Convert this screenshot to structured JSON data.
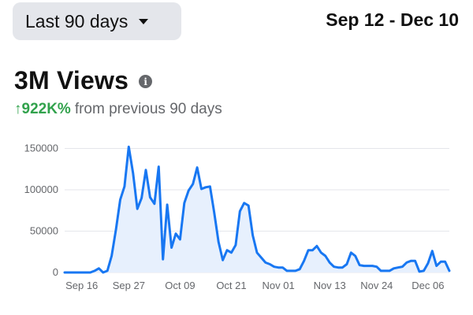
{
  "range_selector": {
    "label": "Last 90 days",
    "icon": "caret-down-icon"
  },
  "date_range": "Sep 12 - Dec 10",
  "metric": {
    "title": "3M Views",
    "info_icon": "info-icon"
  },
  "change": {
    "arrow": "↑",
    "value": "922K%",
    "text": "from previous 90 days",
    "color": "#31a24c"
  },
  "colors": {
    "line": "#1877f2",
    "fill": "#e7f0fd",
    "grid": "#e4e6eb"
  },
  "chart_data": {
    "type": "area",
    "x_start": "Sep 12",
    "x_end": "Dec 10",
    "ylim": [
      0,
      160000
    ],
    "yticks": [
      0,
      50000,
      100000,
      150000
    ],
    "ytick_labels": [
      "0",
      "50000",
      "100000",
      "150000"
    ],
    "xticks": [
      {
        "label": "Sep 16",
        "day": 4
      },
      {
        "label": "Sep 27",
        "day": 15
      },
      {
        "label": "Oct 09",
        "day": 27
      },
      {
        "label": "Oct 21",
        "day": 39
      },
      {
        "label": "Nov 01",
        "day": 50
      },
      {
        "label": "Nov 13",
        "day": 62
      },
      {
        "label": "Nov 24",
        "day": 73
      },
      {
        "label": "Dec 06",
        "day": 85
      }
    ],
    "series": [
      {
        "values": [
          0,
          0,
          0,
          0,
          0,
          0,
          0,
          2000,
          5000,
          0,
          2000,
          20000,
          52000,
          88000,
          104000,
          152000,
          120000,
          77000,
          90000,
          124000,
          91000,
          83000,
          128000,
          16000,
          82000,
          30000,
          47000,
          40000,
          84000,
          99000,
          107000,
          127000,
          101000,
          103000,
          104000,
          72000,
          37000,
          15000,
          27000,
          24000,
          33000,
          74000,
          84000,
          81000,
          45000,
          24000,
          18000,
          12000,
          10000,
          7000,
          6000,
          6000,
          2000,
          2000,
          2000,
          4000,
          14000,
          27000,
          27000,
          32000,
          24000,
          20000,
          12000,
          7000,
          6000,
          6000,
          10000,
          24000,
          20000,
          9000,
          8000,
          8000,
          8000,
          7000,
          2000,
          2000,
          2000,
          5000,
          6000,
          7000,
          12000,
          14000,
          14000,
          1000,
          2000,
          11000,
          26000,
          8000,
          13000,
          13000,
          2000
        ]
      }
    ],
    "grid": true,
    "legend": "none"
  }
}
